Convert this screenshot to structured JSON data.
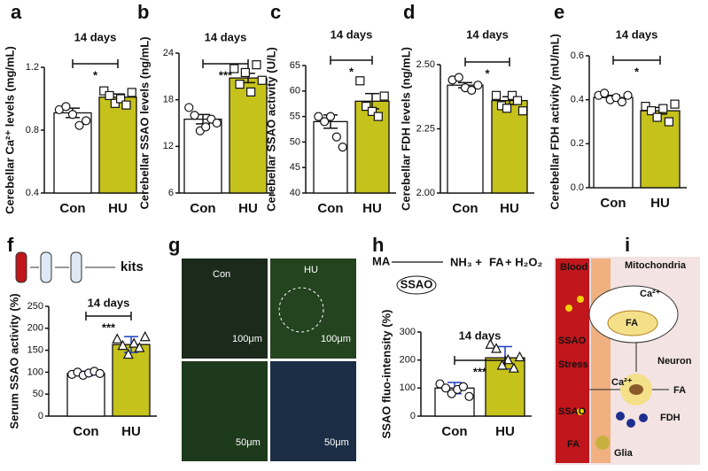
{
  "chart_data": [
    {
      "type": "bar",
      "label": "a",
      "title": "14 days",
      "ylabel": "Cerebellar Ca²⁺ levels (mg/mL)",
      "categories": [
        "Con",
        "HU"
      ],
      "values": [
        0.91,
        1.01
      ],
      "errors": [
        0.03,
        0.02
      ],
      "points": [
        [
          0.93,
          0.95,
          0.9,
          0.83,
          0.86
        ],
        [
          1.05,
          1.02,
          0.97,
          1.0,
          0.96,
          1.04
        ]
      ],
      "colors": [
        "#ffffff",
        "#c6c21c"
      ],
      "markers": [
        "circle",
        "square"
      ],
      "error_color": "#111111",
      "ylim": [
        0.4,
        1.2
      ],
      "yticks": [
        0.4,
        0.8,
        1.2
      ],
      "significance": "*"
    },
    {
      "type": "bar",
      "label": "b",
      "title": "14 days",
      "ylabel": "Cerebellar SSAO levels (ng/mL)",
      "categories": [
        "Con",
        "HU"
      ],
      "values": [
        15.5,
        20.8
      ],
      "errors": [
        0.6,
        0.6
      ],
      "points": [
        [
          17,
          16,
          14,
          14.5,
          15.5,
          15
        ],
        [
          22,
          20,
          21.5,
          19,
          22.5,
          20.5
        ]
      ],
      "colors": [
        "#ffffff",
        "#c6c21c"
      ],
      "markers": [
        "circle",
        "square"
      ],
      "error_color": "#111111",
      "ylim": [
        6,
        24
      ],
      "yticks": [
        6,
        12,
        18,
        24
      ],
      "significance": "***"
    },
    {
      "type": "bar",
      "label": "c",
      "title": "14 days",
      "ylabel": "Cerebellar SSAO activity (U/L)",
      "categories": [
        "Con",
        "HU"
      ],
      "values": [
        54,
        58
      ],
      "errors": [
        1.3,
        1.5
      ],
      "points": [
        [
          55,
          54,
          55,
          51,
          49
        ],
        [
          62,
          57,
          56,
          55,
          59
        ]
      ],
      "colors": [
        "#ffffff",
        "#c6c21c"
      ],
      "markers": [
        "circle",
        "square"
      ],
      "error_color": "#111111",
      "ylim": [
        40,
        65
      ],
      "yticks": [
        40,
        45,
        50,
        55,
        60,
        65
      ],
      "significance": "*"
    },
    {
      "type": "bar",
      "label": "d",
      "title": "14 days",
      "ylabel": "Cerebellar FDH levels (ng/mL)",
      "categories": [
        "Con",
        "HU"
      ],
      "values": [
        2.42,
        2.36
      ],
      "errors": [
        0.01,
        0.015
      ],
      "points": [
        [
          2.44,
          2.45,
          2.41,
          2.4,
          2.42
        ],
        [
          2.38,
          2.34,
          2.33,
          2.38,
          2.36,
          2.32
        ]
      ],
      "colors": [
        "#ffffff",
        "#c6c21c"
      ],
      "markers": [
        "circle",
        "square"
      ],
      "error_color": "#111111",
      "ylim": [
        2.0,
        2.5
      ],
      "yticks": [
        {
          "value": 2.0,
          "label": "2.00"
        },
        2.25,
        {
          "value": 2.5,
          "label": "2.50"
        }
      ],
      "significance": "*"
    },
    {
      "type": "bar",
      "label": "e",
      "title": "14 days",
      "ylabel": "Cerebellar FDH activity (mU/mL)",
      "categories": [
        "Con",
        "HU"
      ],
      "values": [
        0.41,
        0.35
      ],
      "errors": [
        0.01,
        0.015
      ],
      "points": [
        [
          0.42,
          0.43,
          0.4,
          0.41,
          0.39,
          0.42
        ],
        [
          0.37,
          0.35,
          0.32,
          0.36,
          0.3,
          0.38
        ]
      ],
      "colors": [
        "#ffffff",
        "#c6c21c"
      ],
      "markers": [
        "circle",
        "square"
      ],
      "error_color": "#111111",
      "ylim": [
        0,
        0.6
      ],
      "yticks": [
        {
          "value": 0,
          "label": "0.0"
        },
        0.2,
        0.4,
        0.6
      ],
      "significance": "*"
    },
    {
      "type": "bar",
      "label": "f",
      "title": "14 days",
      "ylabel": "Serum SSAO activity (%)",
      "categories": [
        "Con",
        "HU"
      ],
      "values": [
        97,
        163
      ],
      "errors": [
        5,
        18
      ],
      "points": [
        [
          95,
          100,
          93,
          98,
          102,
          97
        ],
        [
          175,
          160,
          140,
          165,
          155,
          180
        ]
      ],
      "colors": [
        "#ffffff",
        "#c6c21c"
      ],
      "markers": [
        "circle",
        "triangle"
      ],
      "error_color": "#1f3fbf",
      "ylim": [
        0,
        250
      ],
      "yticks": [
        0,
        50,
        100,
        150,
        200,
        250
      ],
      "significance": "***",
      "annotations": [
        "kits"
      ]
    },
    {
      "type": "bar",
      "label": "h",
      "title": "14 days",
      "ylabel": "SSAO fluo-intensity (%)",
      "categories": [
        "Con",
        "HU"
      ],
      "values": [
        100,
        208
      ],
      "errors": [
        20,
        40
      ],
      "points": [
        [
          115,
          100,
          80,
          95,
          105,
          70
        ],
        [
          255,
          240,
          180,
          200,
          170,
          210
        ]
      ],
      "colors": [
        "#ffffff",
        "#c6c21c"
      ],
      "markers": [
        "circle",
        "triangle"
      ],
      "error_color": "#1f3fbf",
      "ylim": [
        0,
        300
      ],
      "yticks": [
        0,
        100,
        200,
        300
      ],
      "significance": "***",
      "annotations": [
        "MA",
        "SSAO",
        "NH₃ +",
        "FA",
        "+ H₂O₂"
      ]
    }
  ],
  "images": {
    "label": "g",
    "captions": [
      "Con",
      "HU"
    ],
    "scalebars": [
      "100μm",
      "100μm",
      "50μm",
      "50μm"
    ]
  },
  "diagram": {
    "label": "i",
    "texts": [
      "Blood",
      "SSAO",
      "Stress",
      "SSAO",
      "FA",
      "Mitochondria",
      "Ca²⁺",
      "FA",
      "Ca²⁺",
      "Neuron",
      "FA",
      "FDH",
      "Glia"
    ]
  }
}
